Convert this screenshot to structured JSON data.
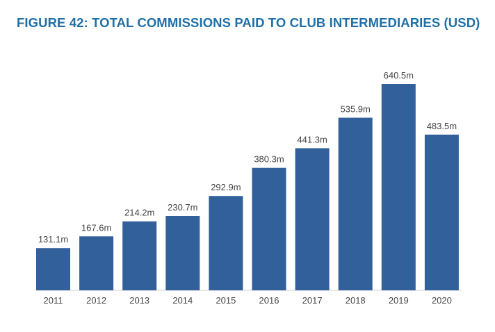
{
  "colors": {
    "title": "#1f6fa6",
    "bar": "#31609a",
    "label_text": "#444444",
    "background": "#ffffff"
  },
  "chart_data": {
    "type": "bar",
    "title": "FIGURE 42: TOTAL COMMISSIONS PAID TO CLUB INTERMEDIARIES (USD)",
    "xlabel": "",
    "ylabel": "",
    "categories": [
      "2011",
      "2012",
      "2013",
      "2014",
      "2015",
      "2016",
      "2017",
      "2018",
      "2019",
      "2020"
    ],
    "values": [
      131.1,
      167.6,
      214.2,
      230.7,
      292.9,
      380.3,
      441.3,
      535.9,
      640.5,
      483.5
    ],
    "data_labels": [
      "131.1m",
      "167.6m",
      "214.2m",
      "230.7m",
      "292.9m",
      "380.3m",
      "441.3m",
      "535.9m",
      "640.5m",
      "483.5m"
    ],
    "ylim": [
      0,
      640.5
    ],
    "grid": false,
    "legend": "none"
  }
}
